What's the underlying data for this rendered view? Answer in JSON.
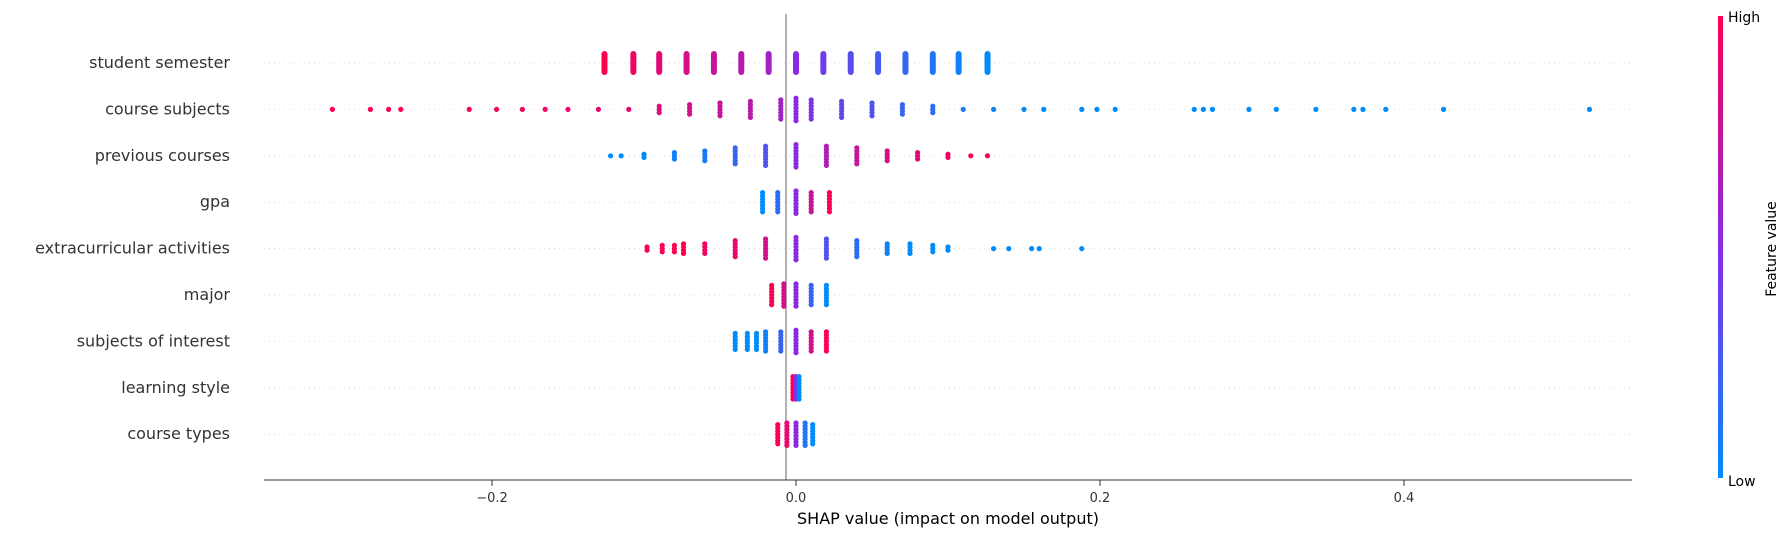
{
  "chart_data": {
    "type": "scatter",
    "subtype": "shap-beeswarm",
    "title": "",
    "xlabel": "SHAP value (impact on model output)",
    "ylabel": "",
    "xlim": [
      -0.35,
      0.55
    ],
    "xticks": [
      -0.2,
      0.0,
      0.2,
      0.4
    ],
    "xtick_labels": [
      "−0.2",
      "0.0",
      "0.2",
      "0.4"
    ],
    "grid": "horizontal dotted guides per feature",
    "colorbar": {
      "label": "Feature value",
      "high_label": "High",
      "low_label": "Low",
      "low_color": "#008bfb",
      "high_color": "#ff0051"
    },
    "features": [
      {
        "name": "student semester",
        "points": [
          [
            -0.126,
            1.0
          ],
          [
            -0.107,
            0.94
          ],
          [
            -0.09,
            0.88
          ],
          [
            -0.072,
            0.82
          ],
          [
            -0.054,
            0.75
          ],
          [
            -0.036,
            0.68
          ],
          [
            -0.018,
            0.6
          ],
          [
            0.0,
            0.5
          ],
          [
            0.018,
            0.4
          ],
          [
            0.036,
            0.32
          ],
          [
            0.054,
            0.25
          ],
          [
            0.072,
            0.18
          ],
          [
            0.09,
            0.12
          ],
          [
            0.107,
            0.06
          ],
          [
            0.126,
            0.0
          ]
        ]
      },
      {
        "name": "course subjects",
        "points": [
          [
            -0.305,
            1
          ],
          [
            -0.28,
            1
          ],
          [
            -0.268,
            1
          ],
          [
            -0.26,
            1
          ],
          [
            -0.215,
            0.95
          ],
          [
            -0.197,
            0.95
          ],
          [
            -0.18,
            0.95
          ],
          [
            -0.165,
            0.92
          ],
          [
            -0.15,
            0.9
          ],
          [
            -0.13,
            0.9
          ],
          [
            -0.11,
            0.88
          ],
          [
            -0.09,
            0.85
          ],
          [
            -0.07,
            0.8
          ],
          [
            -0.05,
            0.75
          ],
          [
            -0.03,
            0.7
          ],
          [
            -0.01,
            0.6
          ],
          [
            0.0,
            0.5
          ],
          [
            0.01,
            0.45
          ],
          [
            0.03,
            0.35
          ],
          [
            0.05,
            0.3
          ],
          [
            0.07,
            0.2
          ],
          [
            0.09,
            0.15
          ],
          [
            0.11,
            0.1
          ],
          [
            0.13,
            0.05
          ],
          [
            0.15,
            0.0
          ],
          [
            0.163,
            0.0
          ],
          [
            0.188,
            0.0
          ],
          [
            0.198,
            0.0
          ],
          [
            0.21,
            0.0
          ],
          [
            0.262,
            0.0
          ],
          [
            0.268,
            0.0
          ],
          [
            0.274,
            0.0
          ],
          [
            0.298,
            0.0
          ],
          [
            0.316,
            0.0
          ],
          [
            0.342,
            0.0
          ],
          [
            0.367,
            0.0
          ],
          [
            0.373,
            0.0
          ],
          [
            0.388,
            0.0
          ],
          [
            0.426,
            0.0
          ],
          [
            0.522,
            0.0
          ]
        ]
      },
      {
        "name": "previous courses",
        "points": [
          [
            -0.122,
            0.0
          ],
          [
            -0.115,
            0.0
          ],
          [
            -0.1,
            0.0
          ],
          [
            -0.08,
            0.05
          ],
          [
            -0.06,
            0.1
          ],
          [
            -0.04,
            0.2
          ],
          [
            -0.02,
            0.3
          ],
          [
            0.0,
            0.5
          ],
          [
            0.02,
            0.65
          ],
          [
            0.04,
            0.75
          ],
          [
            0.06,
            0.82
          ],
          [
            0.08,
            0.88
          ],
          [
            0.1,
            0.92
          ],
          [
            0.115,
            0.95
          ],
          [
            0.126,
            1.0
          ]
        ]
      },
      {
        "name": "gpa",
        "points": [
          [
            -0.022,
            0.0
          ],
          [
            -0.012,
            0.15
          ],
          [
            0.0,
            0.5
          ],
          [
            0.01,
            0.75
          ],
          [
            0.022,
            1.0
          ]
        ]
      },
      {
        "name": "extracurricular activities",
        "points": [
          [
            -0.098,
            1.0
          ],
          [
            -0.088,
            1.0
          ],
          [
            -0.08,
            1.0
          ],
          [
            -0.074,
            1.0
          ],
          [
            -0.06,
            0.95
          ],
          [
            -0.04,
            0.9
          ],
          [
            -0.02,
            0.8
          ],
          [
            0.0,
            0.5
          ],
          [
            0.02,
            0.3
          ],
          [
            0.04,
            0.15
          ],
          [
            0.06,
            0.05
          ],
          [
            0.075,
            0.0
          ],
          [
            0.09,
            0.0
          ],
          [
            0.1,
            0.0
          ],
          [
            0.13,
            0.0
          ],
          [
            0.14,
            0.0
          ],
          [
            0.155,
            0.0
          ],
          [
            0.16,
            0.0
          ],
          [
            0.188,
            0.0
          ]
        ]
      },
      {
        "name": "major",
        "points": [
          [
            -0.016,
            1.0
          ],
          [
            -0.008,
            0.8
          ],
          [
            0.0,
            0.5
          ],
          [
            0.01,
            0.2
          ],
          [
            0.02,
            0.0
          ]
        ]
      },
      {
        "name": "subjects of interest",
        "points": [
          [
            -0.04,
            0.0
          ],
          [
            -0.032,
            0.0
          ],
          [
            -0.026,
            0.0
          ],
          [
            -0.02,
            0.05
          ],
          [
            -0.01,
            0.2
          ],
          [
            0.0,
            0.5
          ],
          [
            0.01,
            0.8
          ],
          [
            0.02,
            1.0
          ]
        ]
      },
      {
        "name": "learning style",
        "points": [
          [
            -0.002,
            1.0
          ],
          [
            0.0,
            0.5
          ],
          [
            0.002,
            0.0
          ]
        ]
      },
      {
        "name": "course types",
        "points": [
          [
            -0.012,
            1.0
          ],
          [
            -0.006,
            0.9
          ],
          [
            0.0,
            0.5
          ],
          [
            0.006,
            0.1
          ],
          [
            0.011,
            0.0
          ]
        ]
      }
    ]
  }
}
